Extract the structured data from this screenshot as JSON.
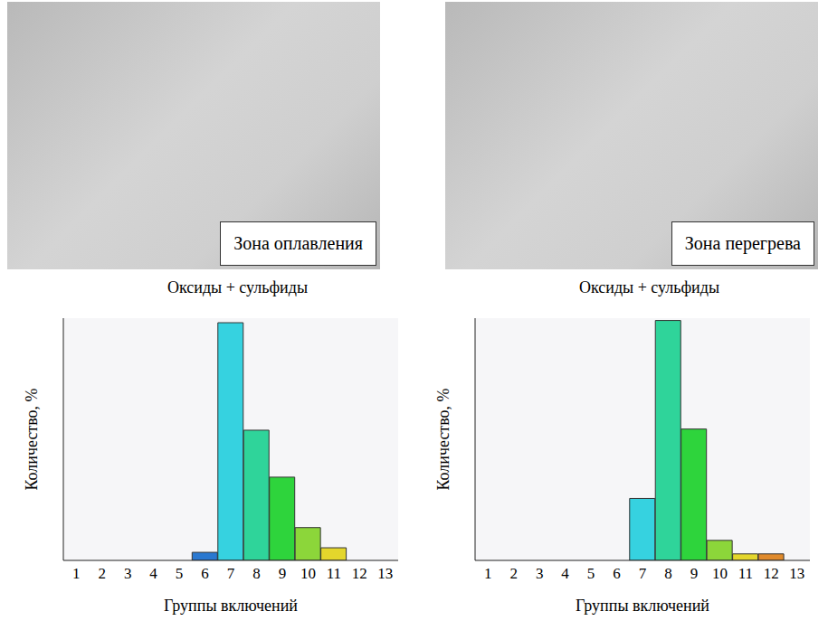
{
  "photos": [
    {
      "label": "Зона оплавления"
    },
    {
      "label": "Зона перегрева"
    }
  ],
  "chart_data": [
    {
      "type": "bar",
      "title": "Оксиды + сульфиды",
      "x_label": "Группы включений",
      "y_label": "Количество, %",
      "categories": [
        "1",
        "2",
        "3",
        "4",
        "5",
        "6",
        "7",
        "8",
        "9",
        "10",
        "11",
        "12",
        "13"
      ],
      "values": [
        null,
        null,
        null,
        null,
        null,
        1.6,
        47.1,
        25.8,
        16.5,
        6.5,
        2.5,
        null,
        null
      ],
      "colors": [
        null,
        null,
        null,
        null,
        null,
        "#2a78d0",
        "#36d2e0",
        "#2fd49a",
        "#2ed43c",
        "#8cd63a",
        "#e4d62c",
        null,
        null
      ],
      "ylim": [
        0,
        48
      ],
      "tick_labels": "x",
      "grid": false
    },
    {
      "type": "bar",
      "title": "Оксиды + сульфиды",
      "x_label": "Группы включений",
      "y_label": "Количество, %",
      "categories": [
        "1",
        "2",
        "3",
        "4",
        "5",
        "6",
        "7",
        "8",
        "9",
        "10",
        "11",
        "12",
        "13"
      ],
      "values": [
        null,
        null,
        null,
        null,
        null,
        null,
        13.3,
        51.5,
        28.2,
        4.3,
        1.4,
        1.4,
        null
      ],
      "colors": [
        null,
        null,
        null,
        null,
        null,
        null,
        "#36d2e0",
        "#2fd49a",
        "#2ed43c",
        "#8cd63a",
        "#e4d62c",
        "#e08a2c",
        null
      ],
      "ylim": [
        0,
        52
      ],
      "tick_labels": "x",
      "grid": false
    }
  ]
}
